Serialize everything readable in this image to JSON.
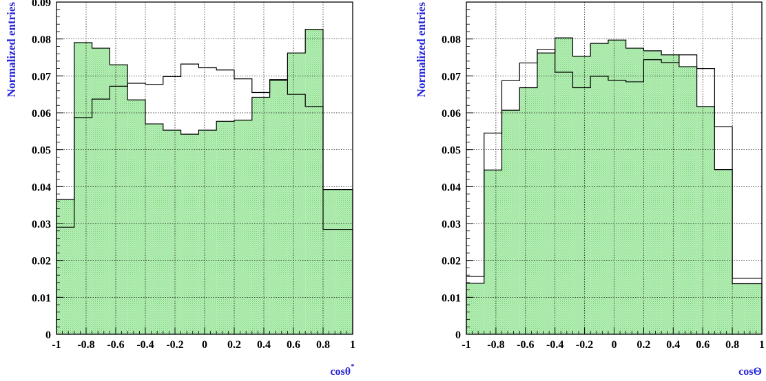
{
  "colors": {
    "fill": "#b6f0b6",
    "hatch": "#7fce7f",
    "line": "#000000",
    "label": "#2626d9",
    "grid": "#000000"
  },
  "chart_data": [
    {
      "type": "bar",
      "xlabel": "cosθ",
      "xlabel_sup": "*",
      "ylabel": "Normalized entries",
      "xlim": [
        -1,
        1
      ],
      "ylim": [
        0,
        0.09
      ],
      "xticks": [
        -1,
        -0.8,
        -0.6,
        -0.4,
        -0.2,
        0,
        0.2,
        0.4,
        0.6,
        0.8,
        1
      ],
      "xtick_labels": [
        "-1",
        "-0.8",
        "-0.6",
        "-0.4",
        "-0.2",
        "0",
        "0.2",
        "0.4",
        "0.6",
        "0.8",
        "1"
      ],
      "yticks": [
        0,
        0.01,
        0.02,
        0.03,
        0.04,
        0.05,
        0.06,
        0.07,
        0.08,
        0.09
      ],
      "ytick_labels": [
        "0",
        "0.01",
        "0.02",
        "0.03",
        "0.04",
        "0.05",
        "0.06",
        "0.07",
        "0.08",
        "0.09"
      ],
      "grid": true,
      "bin_edges": [
        -1,
        -0.88,
        -0.76,
        -0.64,
        -0.52,
        -0.4,
        -0.28,
        -0.16,
        -0.04,
        0.08,
        0.2,
        0.32,
        0.44,
        0.56,
        0.68,
        0.8,
        0.88,
        1
      ],
      "series": [
        {
          "style": "filled",
          "values": [
            0.0365,
            0.079,
            0.0775,
            0.073,
            0.0635,
            0.057,
            0.0553,
            0.0542,
            0.0553,
            0.0577,
            0.058,
            0.0642,
            0.069,
            0.0762,
            0.0826,
            0.0392,
            0.0392
          ]
        },
        {
          "style": "outline",
          "values": [
            0.029,
            0.0587,
            0.0637,
            0.0672,
            0.068,
            0.0677,
            0.0698,
            0.0732,
            0.0722,
            0.0716,
            0.0692,
            0.0655,
            0.0688,
            0.065,
            0.0617,
            0.0284,
            0.0284
          ]
        }
      ]
    },
    {
      "type": "bar",
      "xlabel": "cosΘ",
      "ylabel": "Normalized entries",
      "xlim": [
        -1,
        1
      ],
      "ylim": [
        0,
        0.09
      ],
      "xticks": [
        -1,
        -0.8,
        -0.6,
        -0.4,
        -0.2,
        0,
        0.2,
        0.4,
        0.6,
        0.8,
        1
      ],
      "xtick_labels": [
        "-1",
        "-0.8",
        "-0.6",
        "-0.4",
        "-0.2",
        "0",
        "0.2",
        "0.4",
        "0.6",
        "0.8",
        "1"
      ],
      "yticks": [
        0,
        0.01,
        0.02,
        0.03,
        0.04,
        0.05,
        0.06,
        0.07,
        0.08
      ],
      "ytick_labels": [
        "0",
        "0.01",
        "0.02",
        "0.03",
        "0.04",
        "0.05",
        "0.06",
        "0.07",
        "0.08"
      ],
      "grid": true,
      "bin_edges": [
        -1,
        -0.88,
        -0.76,
        -0.64,
        -0.52,
        -0.4,
        -0.28,
        -0.16,
        -0.04,
        0.08,
        0.2,
        0.32,
        0.44,
        0.56,
        0.68,
        0.8,
        0.88,
        1
      ],
      "series": [
        {
          "style": "filled",
          "values": [
            0.0138,
            0.0445,
            0.0607,
            0.0668,
            0.0762,
            0.0803,
            0.0753,
            0.0788,
            0.0797,
            0.0775,
            0.0768,
            0.0757,
            0.0725,
            0.0617,
            0.0446,
            0.0137,
            0.0137
          ]
        },
        {
          "style": "outline",
          "values": [
            0.0157,
            0.0545,
            0.0687,
            0.0735,
            0.0772,
            0.071,
            0.0668,
            0.0699,
            0.0688,
            0.0684,
            0.0744,
            0.0736,
            0.0757,
            0.072,
            0.0562,
            0.0152,
            0.0152
          ]
        }
      ]
    }
  ]
}
